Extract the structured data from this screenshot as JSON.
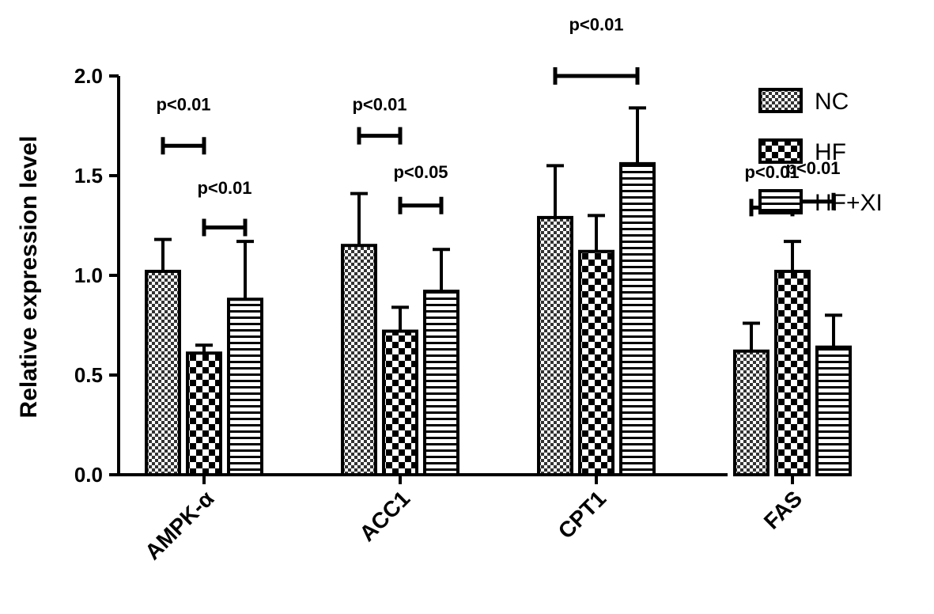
{
  "chart_data": {
    "type": "bar",
    "title": "",
    "xlabel": "",
    "ylabel": "Relative expression level",
    "ylim": [
      0,
      2.0
    ],
    "yticks": [
      "0.0",
      "0.5",
      "1.0",
      "1.5",
      "2.0"
    ],
    "categories": [
      "AMPK-α",
      "ACC1",
      "CPT1",
      "FAS"
    ],
    "series": [
      {
        "name": "NC",
        "pattern": "checker-fine",
        "values": [
          1.02,
          1.15,
          1.29,
          0.62
        ],
        "errors": [
          0.16,
          0.26,
          0.26,
          0.14
        ]
      },
      {
        "name": "HF",
        "pattern": "checker-coarse",
        "values": [
          0.61,
          0.72,
          1.12,
          1.02
        ],
        "errors": [
          0.04,
          0.12,
          0.18,
          0.15
        ]
      },
      {
        "name": "HF+XI",
        "pattern": "horizontal-stripes",
        "values": [
          0.88,
          0.92,
          1.56,
          0.64
        ],
        "errors": [
          0.29,
          0.21,
          0.28,
          0.16
        ]
      }
    ],
    "legend_position": "right",
    "grid": false,
    "significance": [
      {
        "category": 0,
        "from": 0,
        "to": 1,
        "y": 1.65,
        "label": "p<0.01",
        "label_y": 1.86
      },
      {
        "category": 0,
        "from": 1,
        "to": 2,
        "y": 1.24,
        "label": "p<0.01",
        "label_y": 1.44
      },
      {
        "category": 1,
        "from": 0,
        "to": 1,
        "y": 1.7,
        "label": "p<0.01",
        "label_y": 1.86
      },
      {
        "category": 1,
        "from": 1,
        "to": 2,
        "y": 1.35,
        "label": "p<0.05",
        "label_y": 1.52
      },
      {
        "category": 2,
        "from": 0,
        "to": 2,
        "y": 2.0,
        "label": "p<0.01",
        "label_y": 2.26
      },
      {
        "category": 3,
        "from": 0,
        "to": 1,
        "y": 1.34,
        "label": "p<0.01",
        "label_y": 1.52
      },
      {
        "category": 3,
        "from": 1,
        "to": 2,
        "y": 1.37,
        "label": "p<0.01",
        "label_y": 1.54
      }
    ]
  }
}
